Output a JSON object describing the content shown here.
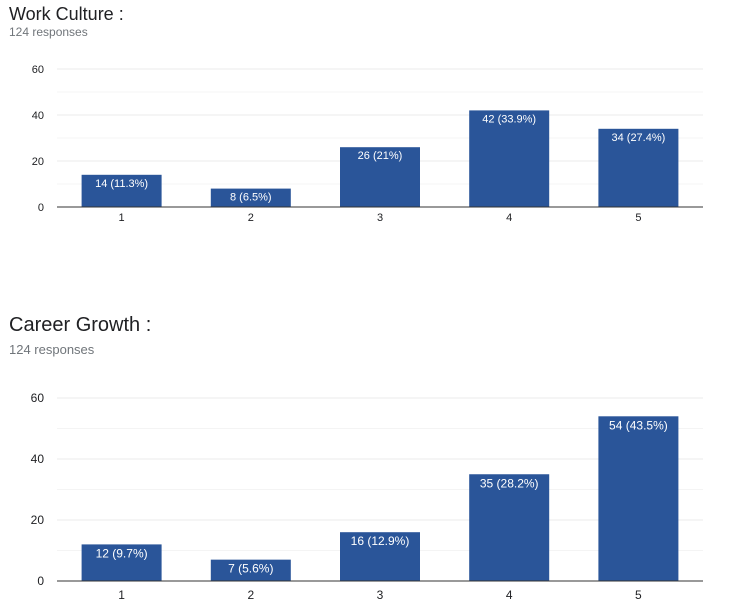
{
  "colors": {
    "bar": "#2a5599",
    "grid": "#ebebeb",
    "axis": "#333333"
  },
  "chart_data": [
    {
      "type": "bar",
      "title": "Work Culture :",
      "subtitle": "124 responses",
      "categories": [
        "1",
        "2",
        "3",
        "4",
        "5"
      ],
      "values": [
        14,
        8,
        26,
        42,
        34
      ],
      "data_labels": [
        "14 (11.3%)",
        "8 (6.5%)",
        "26 (21%)",
        "42 (33.9%)",
        "34 (27.4%)"
      ],
      "ylim": [
        0,
        60
      ],
      "yticks": [
        0,
        20,
        40,
        60
      ],
      "grid": true,
      "xlabel": "",
      "ylabel": ""
    },
    {
      "type": "bar",
      "title": "Career Growth :",
      "subtitle": "124 responses",
      "categories": [
        "1",
        "2",
        "3",
        "4",
        "5"
      ],
      "values": [
        12,
        7,
        16,
        35,
        54
      ],
      "data_labels": [
        "12 (9.7%)",
        "7 (5.6%)",
        "16 (12.9%)",
        "35 (28.2%)",
        "54 (43.5%)"
      ],
      "ylim": [
        0,
        60
      ],
      "yticks": [
        0,
        20,
        40,
        60
      ],
      "grid": true,
      "xlabel": "",
      "ylabel": ""
    }
  ]
}
